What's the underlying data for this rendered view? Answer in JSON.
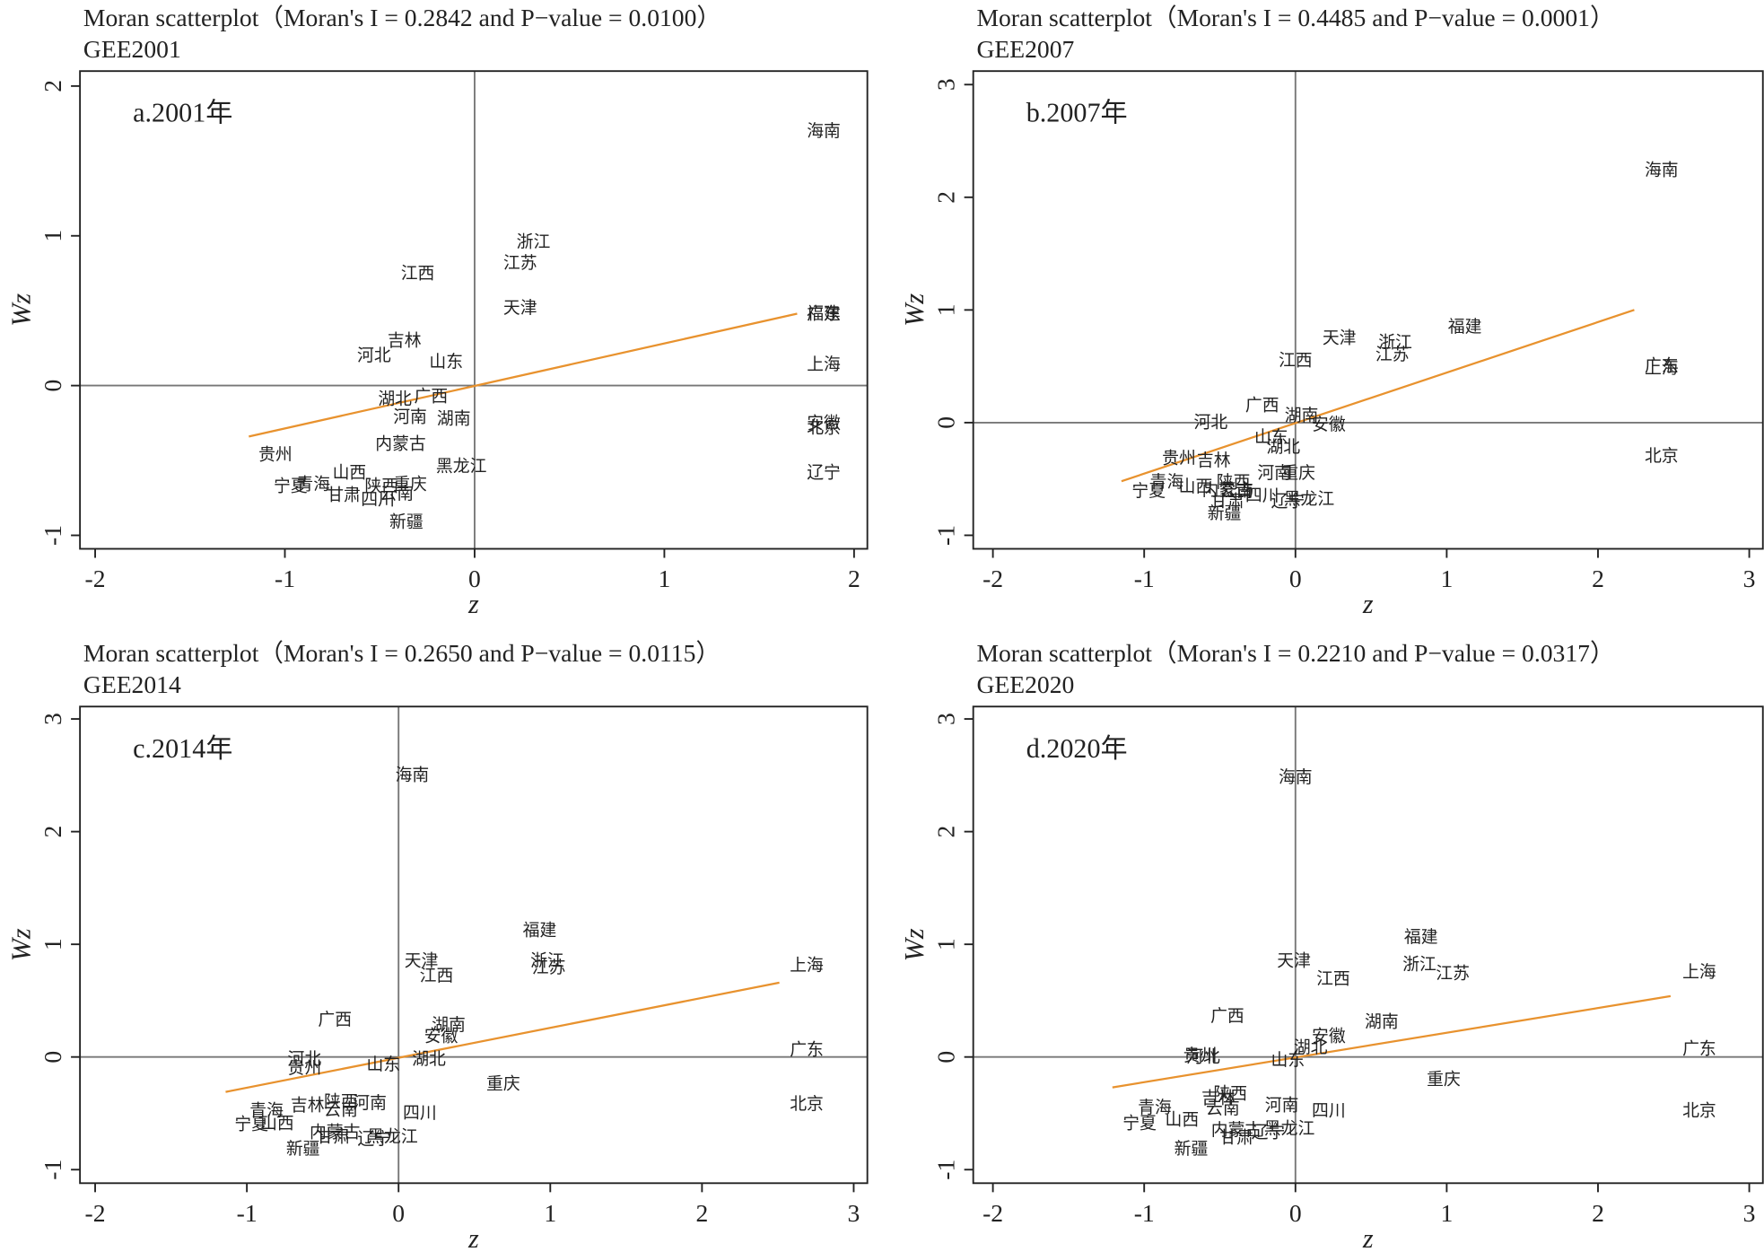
{
  "chart_data": [
    {
      "type": "scatter",
      "title": "Moran scatterplot（Moran's I = 0.2842 and P−value = 0.0100）",
      "subtitle": "GEE2001",
      "panel_label": "a.2001年",
      "xlabel": "z",
      "ylabel": "Wz",
      "xlim": [
        -2.08,
        2.07
      ],
      "ylim": [
        -1.09,
        2.1
      ],
      "xticks": [
        -2,
        -1,
        0,
        1,
        2
      ],
      "yticks": [
        -1,
        0,
        1,
        2
      ],
      "reference_lines": {
        "x": 0,
        "y": 0
      },
      "fit_line": {
        "x": [
          -1.19,
          1.7
        ],
        "y": [
          -0.34,
          0.48
        ],
        "color": "#e8922e"
      },
      "labels": [
        "海南",
        "浙江",
        "江苏",
        "江西",
        "天津",
        "福建",
        "广东",
        "吉林",
        "河北",
        "山东",
        "上海",
        "湖北",
        "广西",
        "河南",
        "湖南",
        "安徽",
        "北京",
        "内蒙古",
        "贵州",
        "黑龙江",
        "辽宁",
        "山西",
        "宁夏",
        "青海",
        "陕西",
        "重庆",
        "甘肃",
        "四川",
        "云南",
        "新疆"
      ],
      "x": [
        1.84,
        0.31,
        0.24,
        -0.3,
        0.24,
        1.84,
        1.84,
        -0.37,
        -0.53,
        -0.15,
        1.84,
        -0.42,
        -0.23,
        -0.34,
        -0.11,
        1.84,
        1.84,
        -0.39,
        -1.05,
        -0.07,
        1.84,
        -0.66,
        -0.97,
        -0.85,
        -0.49,
        -0.34,
        -0.69,
        -0.51,
        -0.41,
        -0.36
      ],
      "y": [
        1.69,
        0.95,
        0.81,
        0.74,
        0.51,
        0.47,
        0.47,
        0.29,
        0.19,
        0.15,
        0.13,
        -0.1,
        -0.08,
        -0.22,
        -0.23,
        -0.26,
        -0.29,
        -0.4,
        -0.47,
        -0.55,
        -0.59,
        -0.59,
        -0.68,
        -0.67,
        -0.68,
        -0.67,
        -0.74,
        -0.77,
        -0.73,
        -0.92
      ]
    },
    {
      "type": "scatter",
      "title": "Moran scatterplot（Moran's I = 0.4485 and P−value = 0.0001）",
      "subtitle": "GEE2007",
      "panel_label": "b.2007年",
      "xlabel": "z",
      "ylabel": "Wz",
      "xlim": [
        -2.13,
        3.09
      ],
      "ylim": [
        -1.12,
        3.12
      ],
      "xticks": [
        -2,
        -1,
        0,
        1,
        2,
        3
      ],
      "yticks": [
        -1,
        0,
        1,
        2,
        3
      ],
      "reference_lines": {
        "x": 0,
        "y": 0
      },
      "fit_line": {
        "x": [
          -1.15,
          2.24
        ],
        "y": [
          -0.52,
          1.0
        ],
        "color": "#e8922e"
      },
      "labels": [
        "海南",
        "福建",
        "天津",
        "浙江",
        "江苏",
        "江西",
        "广东",
        "上海",
        "广西",
        "湖南",
        "安徽",
        "河北",
        "山东",
        "湖北",
        "北京",
        "贵州",
        "吉林",
        "河南",
        "重庆",
        "青海",
        "山西",
        "宁夏",
        "陕西",
        "内蒙古",
        "云南",
        "甘肃",
        "四川",
        "辽宁",
        "黑龙江",
        "新疆"
      ],
      "x": [
        2.42,
        1.12,
        0.29,
        0.66,
        0.64,
        0.0,
        2.42,
        2.42,
        -0.22,
        0.04,
        0.22,
        -0.56,
        -0.16,
        -0.08,
        2.42,
        -0.77,
        -0.54,
        -0.14,
        0.02,
        -0.85,
        -0.66,
        -0.97,
        -0.41,
        -0.45,
        -0.39,
        -0.45,
        -0.22,
        -0.05,
        0.09,
        -0.47
      ],
      "y": [
        2.23,
        0.84,
        0.74,
        0.7,
        0.59,
        0.54,
        0.49,
        0.47,
        0.14,
        0.05,
        -0.03,
        -0.01,
        -0.14,
        -0.23,
        -0.31,
        -0.33,
        -0.35,
        -0.46,
        -0.46,
        -0.54,
        -0.58,
        -0.62,
        -0.54,
        -0.61,
        -0.62,
        -0.71,
        -0.66,
        -0.71,
        -0.69,
        -0.82
      ]
    },
    {
      "type": "scatter",
      "title": "Moran scatterplot（Moran's I = 0.2650 and P−value = 0.0115）",
      "subtitle": "GEE2014",
      "panel_label": "c.2014年",
      "xlabel": "z",
      "ylabel": "Wz",
      "xlim": [
        -2.1,
        3.09
      ],
      "ylim": [
        -1.12,
        3.11
      ],
      "xticks": [
        -2,
        -1,
        0,
        1,
        2,
        3
      ],
      "yticks": [
        -1,
        0,
        1,
        2,
        3
      ],
      "reference_lines": {
        "x": 0,
        "y": 0
      },
      "fit_line": {
        "x": [
          -1.14,
          2.51
        ],
        "y": [
          -0.31,
          0.66
        ],
        "color": "#e8922e"
      },
      "labels": [
        "海南",
        "福建",
        "天津",
        "浙江",
        "江苏",
        "江西",
        "上海",
        "广西",
        "湖南",
        "安徽",
        "广东",
        "湖北",
        "河北",
        "贵州",
        "山东",
        "重庆",
        "北京",
        "吉林",
        "陕西",
        "河南",
        "云南",
        "青海",
        "四川",
        "山西",
        "宁夏",
        "内蒙古",
        "甘肃",
        "辽宁",
        "黑龙江",
        "新疆"
      ],
      "x": [
        0.09,
        0.93,
        0.15,
        0.98,
        0.99,
        0.25,
        2.69,
        -0.42,
        0.33,
        0.28,
        2.69,
        0.2,
        -0.62,
        -0.62,
        -0.1,
        0.69,
        2.69,
        -0.6,
        -0.38,
        -0.19,
        -0.38,
        -0.87,
        0.14,
        -0.8,
        -0.97,
        -0.42,
        -0.43,
        -0.16,
        -0.04,
        -0.63
      ],
      "y": [
        2.49,
        1.11,
        0.84,
        0.84,
        0.78,
        0.71,
        0.8,
        0.32,
        0.27,
        0.17,
        0.05,
        -0.03,
        -0.03,
        -0.11,
        -0.08,
        -0.25,
        -0.43,
        -0.44,
        -0.41,
        -0.42,
        -0.48,
        -0.49,
        -0.51,
        -0.6,
        -0.61,
        -0.68,
        -0.72,
        -0.74,
        -0.72,
        -0.83
      ]
    },
    {
      "type": "scatter",
      "title": "Moran scatterplot（Moran's I = 0.2210 and P−value = 0.0317）",
      "subtitle": "GEE2020",
      "panel_label": "d.2020年",
      "xlabel": "z",
      "ylabel": "Wz",
      "xlim": [
        -2.13,
        3.09
      ],
      "ylim": [
        -1.12,
        3.11
      ],
      "xticks": [
        -2,
        -1,
        0,
        1,
        2,
        3
      ],
      "yticks": [
        -1,
        0,
        1,
        2,
        3
      ],
      "reference_lines": {
        "x": 0,
        "y": 0
      },
      "fit_line": {
        "x": [
          -1.21,
          2.48
        ],
        "y": [
          -0.27,
          0.54
        ],
        "color": "#e8922e"
      },
      "labels": [
        "海南",
        "福建",
        "天津",
        "浙江",
        "江苏",
        "江西",
        "上海",
        "广西",
        "湖南",
        "安徽",
        "湖北",
        "广东",
        "贵州",
        "河北",
        "山东",
        "重庆",
        "吉林",
        "陕西",
        "云南",
        "河南",
        "四川",
        "北京",
        "青海",
        "山西",
        "宁夏",
        "内蒙古",
        "甘肃",
        "辽宁",
        "黑龙江",
        "新疆"
      ],
      "x": [
        0.0,
        0.83,
        -0.01,
        0.82,
        1.04,
        0.25,
        2.67,
        -0.45,
        0.57,
        0.22,
        0.1,
        2.67,
        -0.63,
        -0.61,
        -0.05,
        0.98,
        -0.51,
        -0.43,
        -0.48,
        -0.09,
        0.22,
        2.67,
        -0.93,
        -0.75,
        -1.03,
        -0.39,
        -0.39,
        -0.18,
        -0.04,
        -0.69
      ],
      "y": [
        2.47,
        1.05,
        0.84,
        0.81,
        0.73,
        0.68,
        0.74,
        0.35,
        0.3,
        0.17,
        0.07,
        0.06,
        0.0,
        -0.01,
        -0.04,
        -0.21,
        -0.38,
        -0.34,
        -0.47,
        -0.44,
        -0.49,
        -0.49,
        -0.46,
        -0.57,
        -0.6,
        -0.66,
        -0.73,
        -0.68,
        -0.65,
        -0.83
      ]
    }
  ]
}
